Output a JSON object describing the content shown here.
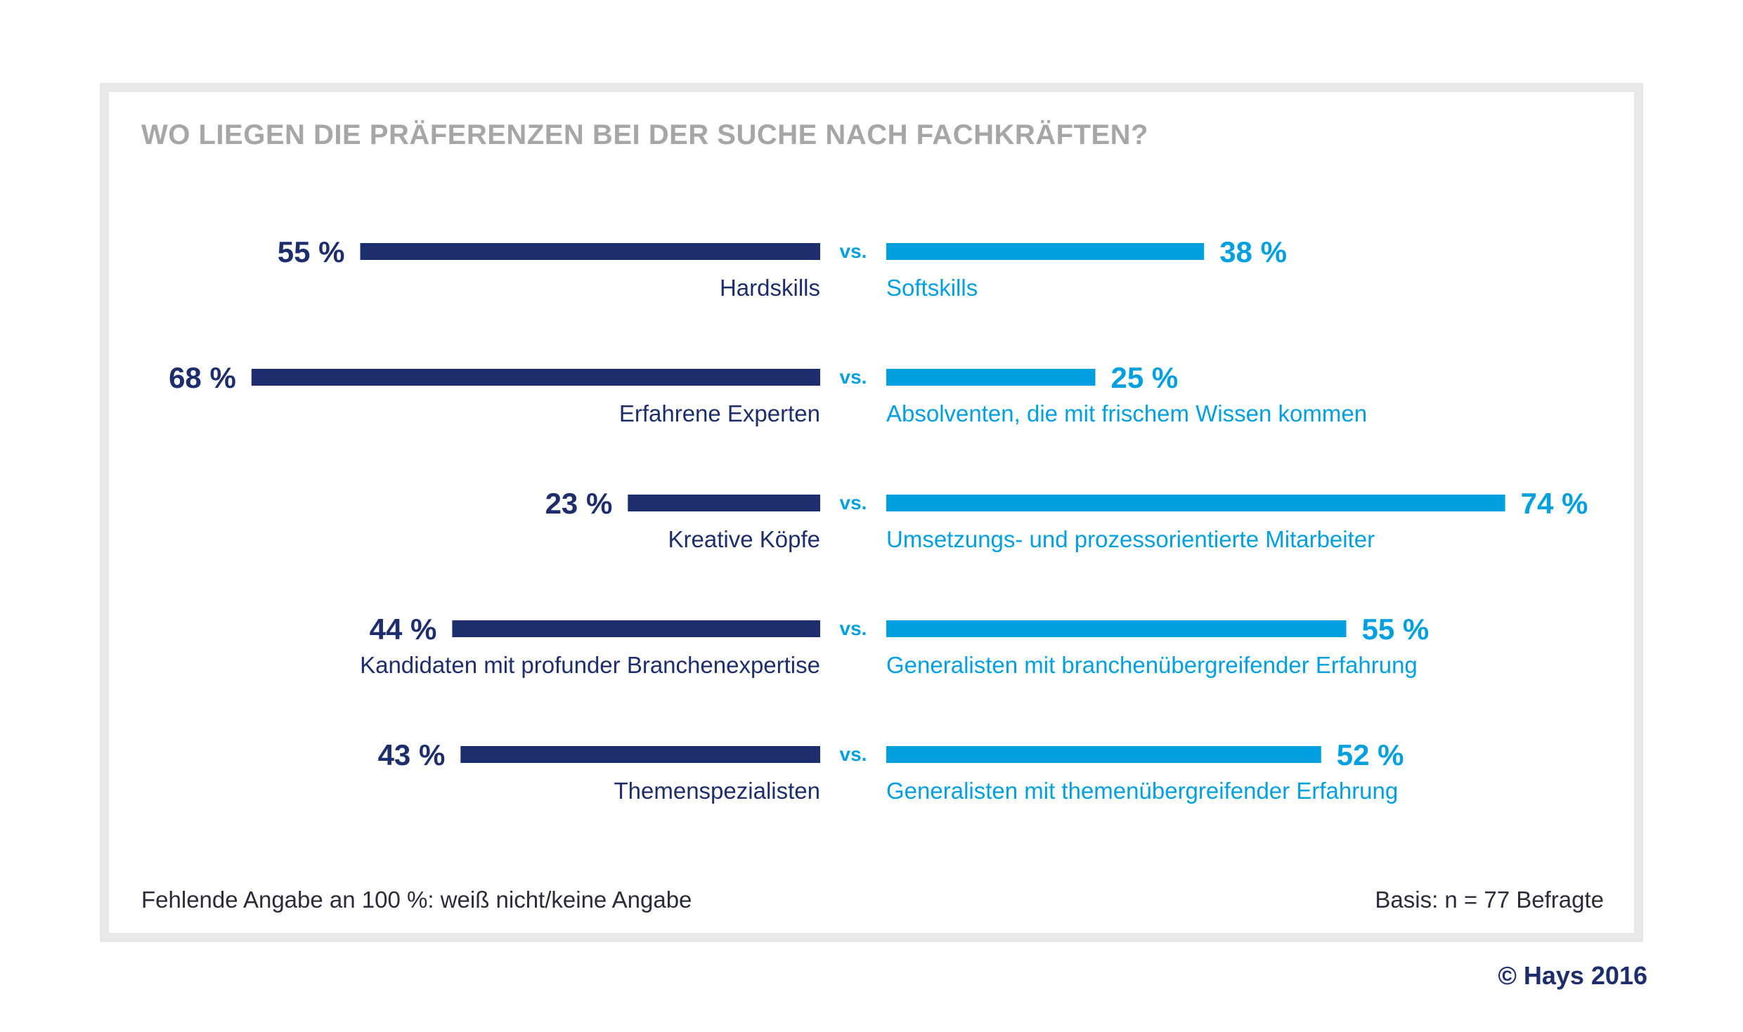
{
  "title": "WO LIEGEN DIE PRÄFERENZEN BEI DER SUCHE NACH FACHKRÄFTEN?",
  "footnote": "Fehlende Angabe an 100 %: weiß nicht/keine Angabe",
  "basis": "Basis: n = 77 Befragte",
  "copyright": "© Hays 2016",
  "vs_label": "vs.",
  "colors": {
    "left": "#1e2d6b",
    "right": "#00a0e0"
  },
  "chart_data": {
    "type": "bar",
    "orientation": "diverging-horizontal",
    "value_suffix": " %",
    "rows": [
      {
        "left_label": "Hardskills",
        "left_value": 55,
        "right_label": "Softskills",
        "right_value": 38
      },
      {
        "left_label": "Erfahrene Experten",
        "left_value": 68,
        "right_label": "Absolventen, die mit frischem Wissen kommen",
        "right_value": 25
      },
      {
        "left_label": "Kreative Köpfe",
        "left_value": 23,
        "right_label": "Umsetzungs- und prozessorientierte Mitarbeiter",
        "right_value": 74
      },
      {
        "left_label": "Kandidaten mit profunder Branchenexpertise",
        "left_value": 44,
        "right_label": "Generalisten mit branchenübergreifender Erfahrung",
        "right_value": 55
      },
      {
        "left_label": "Themenspezialisten",
        "left_value": 43,
        "right_label": "Generalisten mit themenübergreifender Erfahrung",
        "right_value": 52
      }
    ]
  }
}
